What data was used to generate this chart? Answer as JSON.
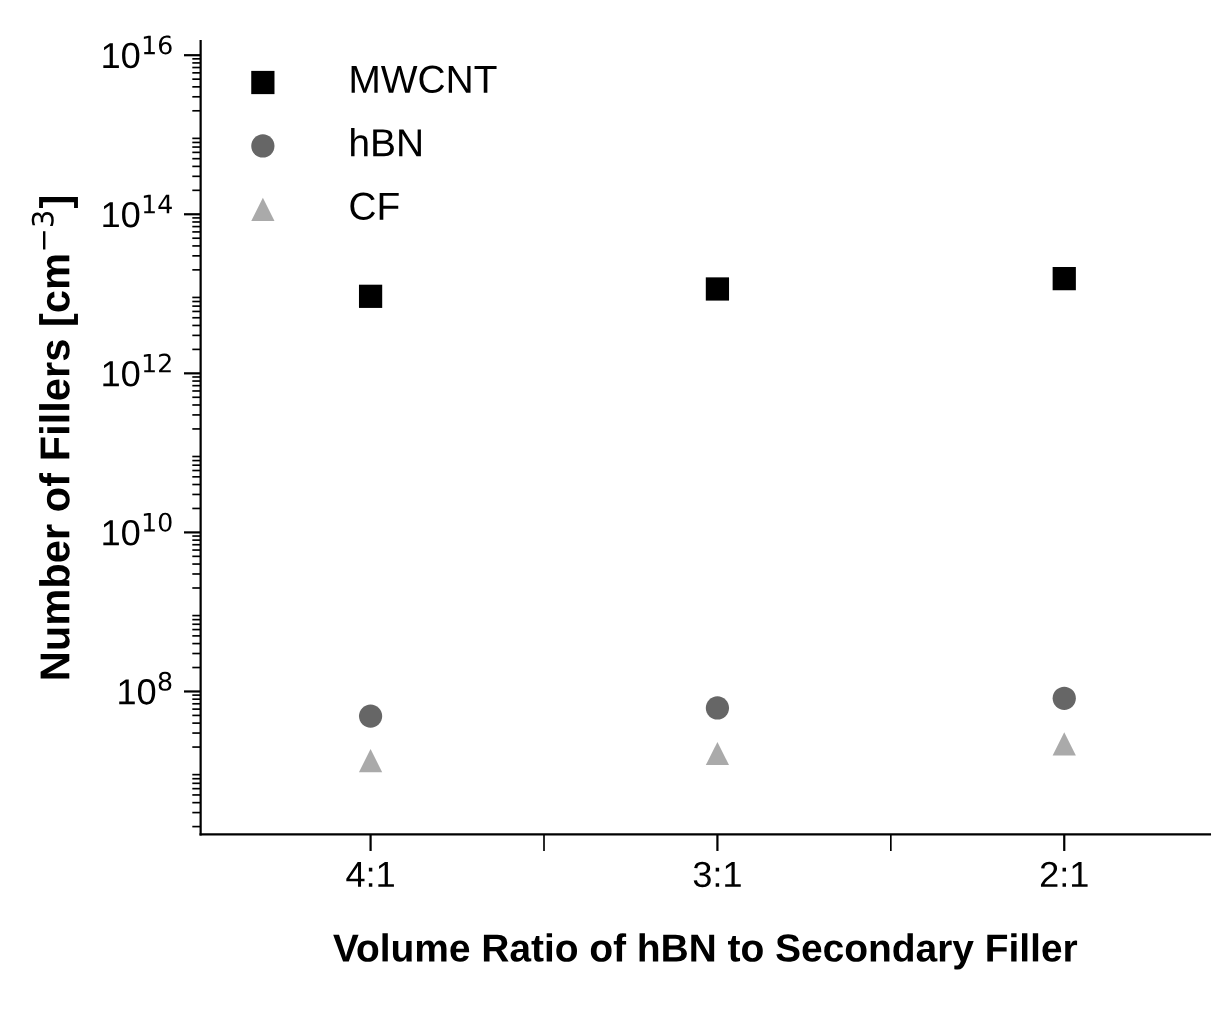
{
  "chart_data": {
    "type": "scatter",
    "xlabel": "Volume Ratio of hBN to Secondary Filler",
    "ylabel": "Number of Fillers [cm$^{−3}$]",
    "categories": [
      "4:1",
      "3:1",
      "2:1"
    ],
    "series": [
      {
        "name": "MWCNT",
        "color": "#000000",
        "marker": "square",
        "values": [
          9300000000000.0,
          11500000000000.0,
          15500000000000.0
        ]
      },
      {
        "name": "hBN",
        "color": "#666666",
        "marker": "circle",
        "values": [
          49000000.0,
          62000000.0,
          82000000.0
        ]
      },
      {
        "name": "CF",
        "color": "#aaaaaa",
        "marker": "triangle",
        "values": [
          13500000.0,
          16600000.0,
          22000000.0
        ]
      }
    ],
    "log": "y",
    "ylim": [
      1600000.0,
      1.5e+16
    ],
    "yticks": [
      {
        "value": 100000000.0,
        "label": "10$^{8}$"
      },
      {
        "value": 10000000000.0,
        "label": "10$^{10}$"
      },
      {
        "value": 1000000000000.0,
        "label": "10$^{12}$"
      },
      {
        "value": 100000000000000.0,
        "label": "10$^{14}$"
      },
      {
        "value": 1e+16,
        "label": "10$^{16}$"
      }
    ],
    "grid": false,
    "legend": "top left"
  }
}
